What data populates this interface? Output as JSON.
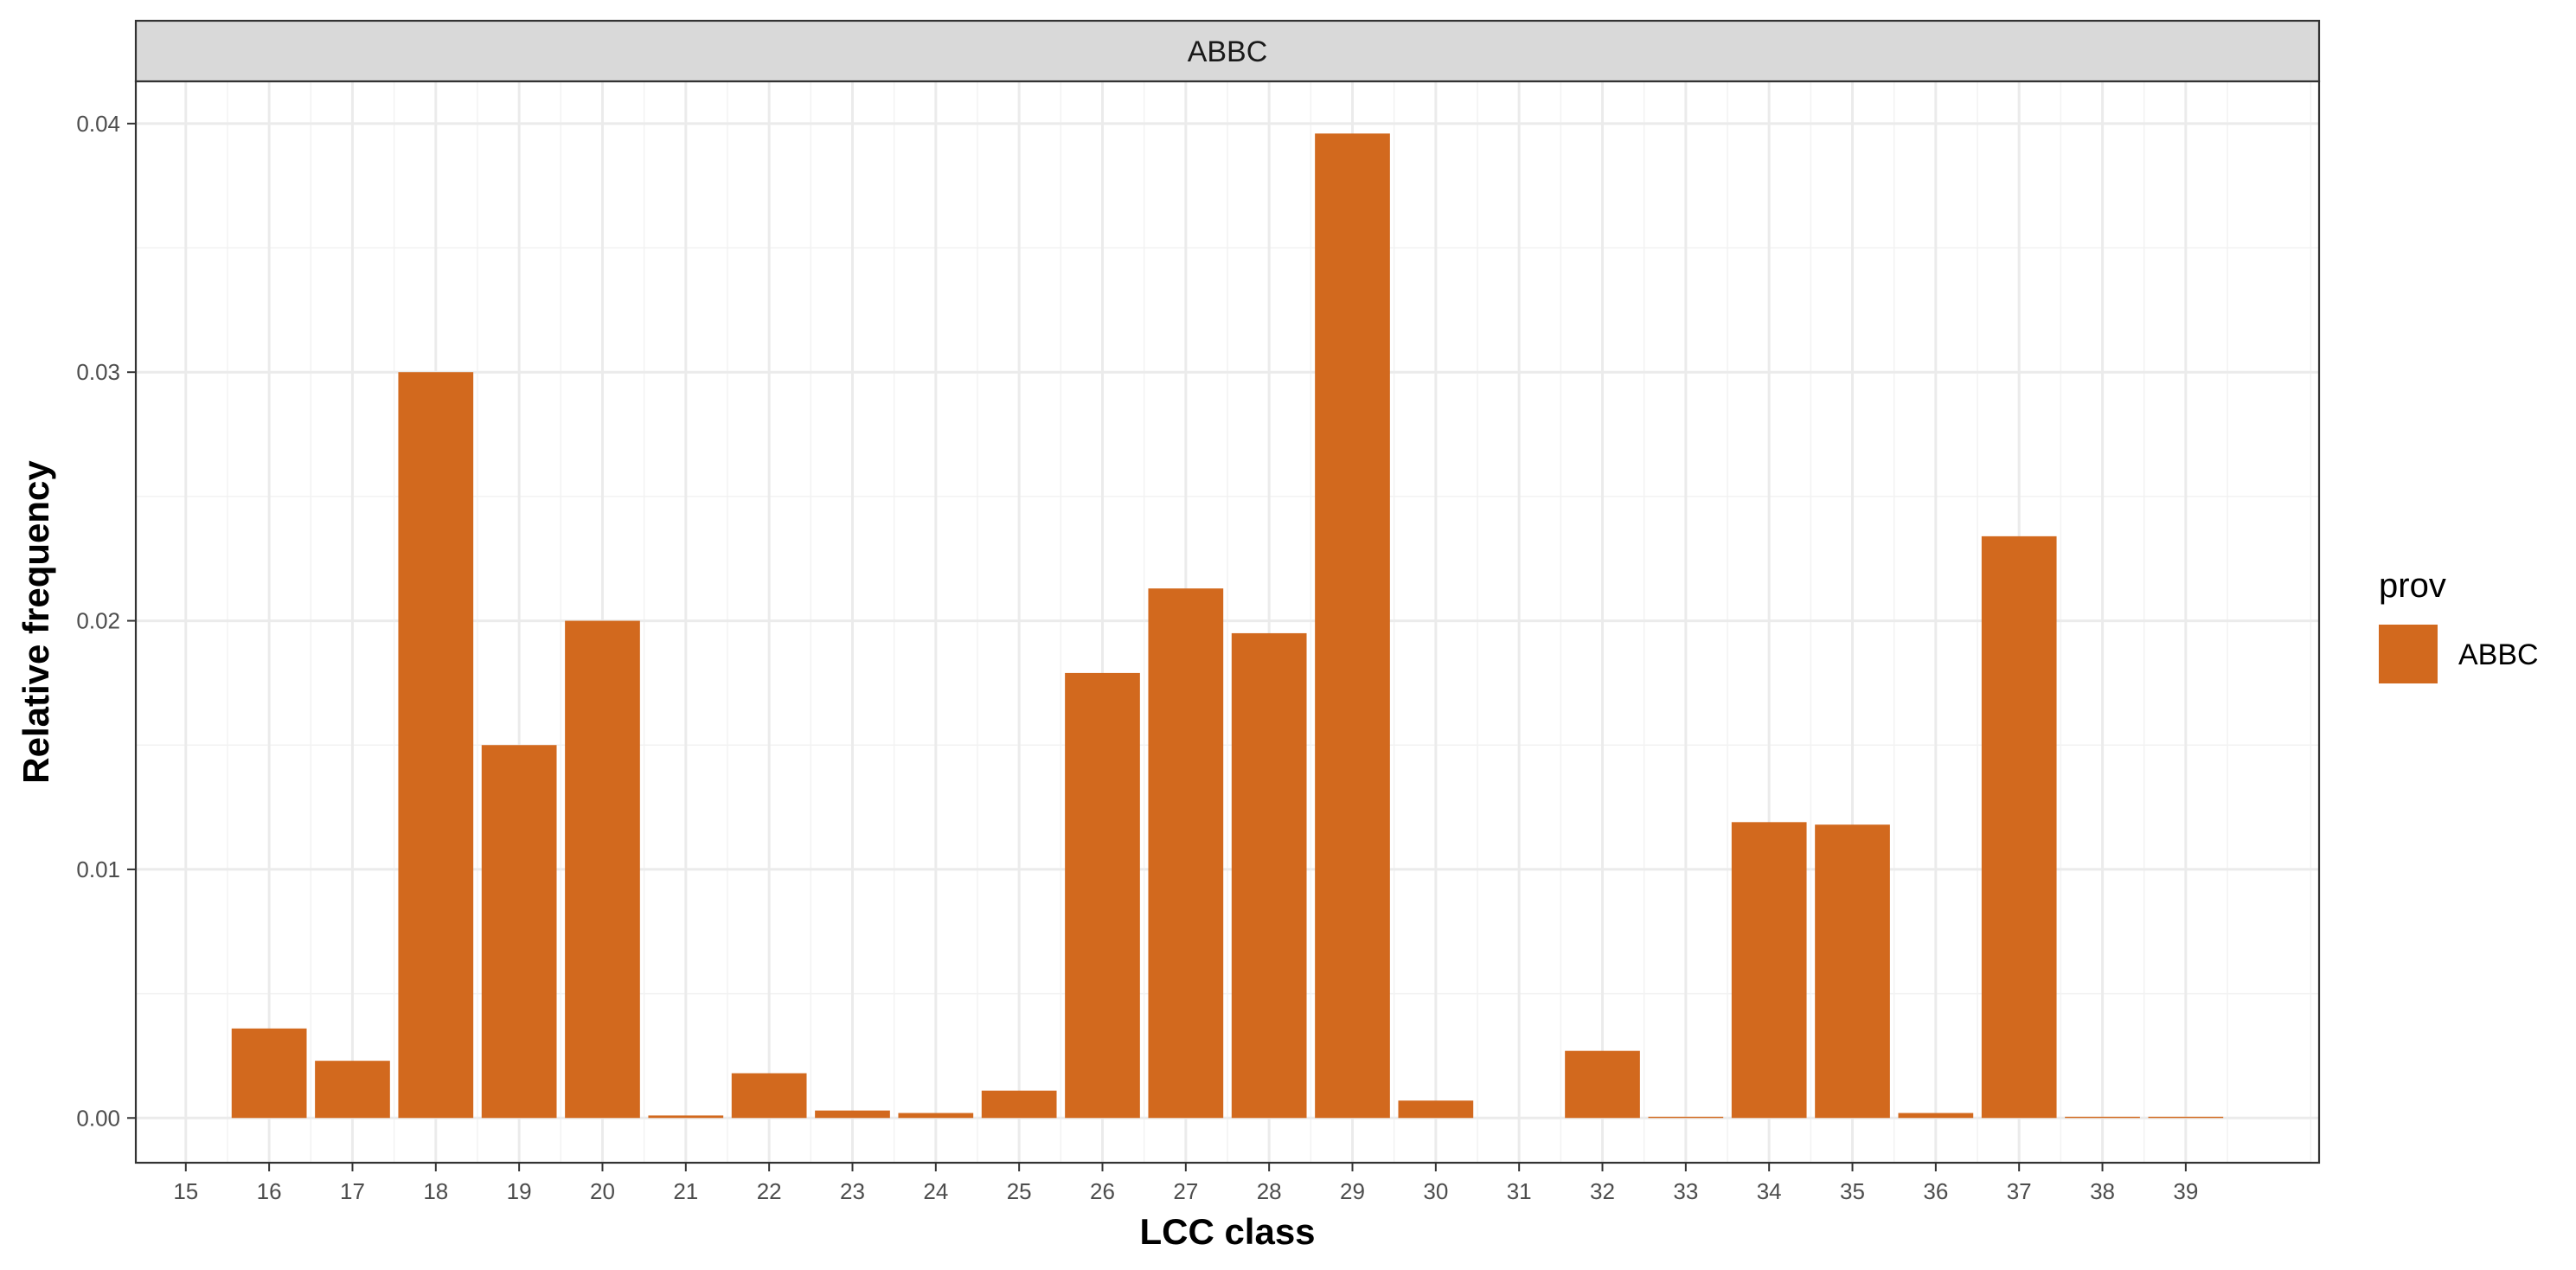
{
  "chart_data": {
    "type": "bar",
    "facet_label": "ABBC",
    "xlabel": "LCC class",
    "ylabel": "Relative frequency",
    "categories": [
      "15",
      "16",
      "17",
      "18",
      "19",
      "20",
      "21",
      "22",
      "23",
      "24",
      "25",
      "26",
      "27",
      "28",
      "29",
      "30",
      "31",
      "32",
      "33",
      "34",
      "35",
      "36",
      "37",
      "38",
      "39"
    ],
    "series": [
      {
        "name": "ABBC",
        "color": "#D2691E",
        "values": [
          0,
          0.0036,
          0.0023,
          0.03,
          0.015,
          0.02,
          0.0001,
          0.0018,
          0.0003,
          0.0002,
          0.0011,
          0.0179,
          0.0213,
          0.0195,
          0.0396,
          0.0007,
          0,
          0.0027,
          5e-05,
          0.0119,
          0.0118,
          0.0002,
          0.0234,
          5e-05,
          5e-05
        ]
      }
    ],
    "ylim": [
      -0.0018,
      0.0417
    ],
    "yticks": [
      0.0,
      0.01,
      0.02,
      0.03,
      0.04
    ],
    "ytick_labels": [
      "0.00",
      "0.01",
      "0.02",
      "0.03",
      "0.04"
    ],
    "grid": true,
    "legend": {
      "title": "prov",
      "position": "right",
      "entries": [
        "ABBC"
      ]
    }
  }
}
